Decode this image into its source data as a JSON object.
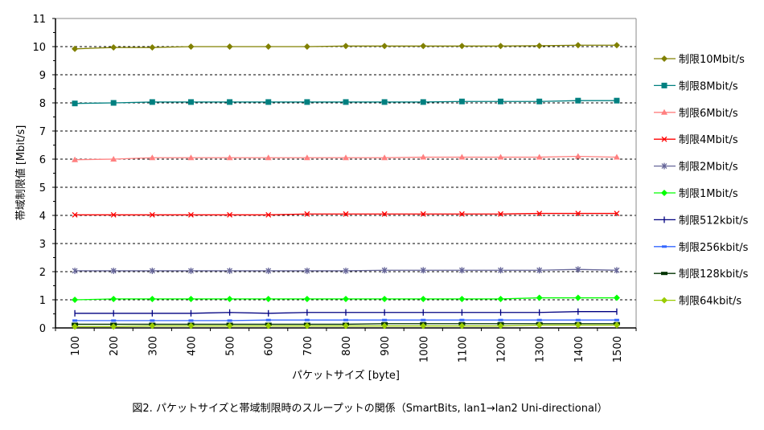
{
  "chart_data": {
    "type": "line",
    "title": "",
    "caption": "図2. パケットサイズと帯域制限時のスループットの関係（SmartBits, lan1→lan2 Uni-directional）",
    "xlabel": "パケットサイズ [byte]",
    "ylabel": "帯域制限値 [Mbit/s]",
    "ylim": [
      0,
      11
    ],
    "yticks": [
      0,
      1,
      2,
      3,
      4,
      5,
      6,
      7,
      8,
      9,
      10,
      11
    ],
    "grid": "horizontal dashed",
    "legend": "right",
    "categories": [
      "100",
      "200",
      "300",
      "400",
      "500",
      "600",
      "700",
      "800",
      "900",
      "1000",
      "1100",
      "1200",
      "1300",
      "1400",
      "1500"
    ],
    "series": [
      {
        "name": "制限10Mbit/s",
        "color": "#808000",
        "marker": "diamond",
        "values": [
          9.92,
          9.97,
          9.97,
          10.0,
          10.0,
          10.0,
          10.0,
          10.02,
          10.02,
          10.02,
          10.02,
          10.02,
          10.03,
          10.05,
          10.05
        ]
      },
      {
        "name": "制限8Mbit/s",
        "color": "#008080",
        "marker": "square",
        "values": [
          7.98,
          8.0,
          8.03,
          8.03,
          8.03,
          8.03,
          8.03,
          8.03,
          8.03,
          8.03,
          8.05,
          8.05,
          8.05,
          8.08,
          8.08
        ]
      },
      {
        "name": "制限6Mbit/s",
        "color": "#ff8080",
        "marker": "triangle",
        "values": [
          5.98,
          6.0,
          6.05,
          6.05,
          6.05,
          6.05,
          6.05,
          6.05,
          6.05,
          6.07,
          6.07,
          6.07,
          6.07,
          6.1,
          6.07
        ]
      },
      {
        "name": "制限4Mbit/s",
        "color": "#ff0000",
        "marker": "x",
        "values": [
          4.02,
          4.02,
          4.02,
          4.02,
          4.02,
          4.02,
          4.05,
          4.05,
          4.05,
          4.05,
          4.05,
          4.05,
          4.07,
          4.07,
          4.07
        ]
      },
      {
        "name": "制限2Mbit/s",
        "color": "#666699",
        "marker": "star",
        "values": [
          2.03,
          2.03,
          2.03,
          2.03,
          2.03,
          2.03,
          2.03,
          2.03,
          2.05,
          2.05,
          2.05,
          2.05,
          2.05,
          2.08,
          2.05
        ]
      },
      {
        "name": "制限1Mbit/s",
        "color": "#00ff00",
        "marker": "diamond",
        "values": [
          1.0,
          1.03,
          1.03,
          1.03,
          1.03,
          1.03,
          1.03,
          1.03,
          1.03,
          1.03,
          1.03,
          1.03,
          1.07,
          1.07,
          1.07
        ]
      },
      {
        "name": "制限512kbit/s",
        "color": "#000080",
        "marker": "plus",
        "values": [
          0.52,
          0.52,
          0.52,
          0.52,
          0.55,
          0.52,
          0.55,
          0.55,
          0.55,
          0.55,
          0.55,
          0.55,
          0.55,
          0.58,
          0.58
        ]
      },
      {
        "name": "制限256kbit/s",
        "color": "#3366ff",
        "marker": "dash",
        "values": [
          0.26,
          0.26,
          0.26,
          0.26,
          0.26,
          0.28,
          0.28,
          0.28,
          0.28,
          0.28,
          0.28,
          0.28,
          0.28,
          0.28,
          0.28
        ]
      },
      {
        "name": "制限128kbit/s",
        "color": "#003300",
        "marker": "bar",
        "values": [
          0.13,
          0.13,
          0.13,
          0.13,
          0.13,
          0.13,
          0.13,
          0.13,
          0.15,
          0.15,
          0.15,
          0.15,
          0.15,
          0.15,
          0.15
        ]
      },
      {
        "name": "制限64kbit/s",
        "color": "#99cc00",
        "marker": "diamond",
        "values": [
          0.05,
          0.05,
          0.07,
          0.07,
          0.07,
          0.07,
          0.07,
          0.07,
          0.07,
          0.07,
          0.07,
          0.07,
          0.1,
          0.1,
          0.1
        ]
      }
    ]
  }
}
